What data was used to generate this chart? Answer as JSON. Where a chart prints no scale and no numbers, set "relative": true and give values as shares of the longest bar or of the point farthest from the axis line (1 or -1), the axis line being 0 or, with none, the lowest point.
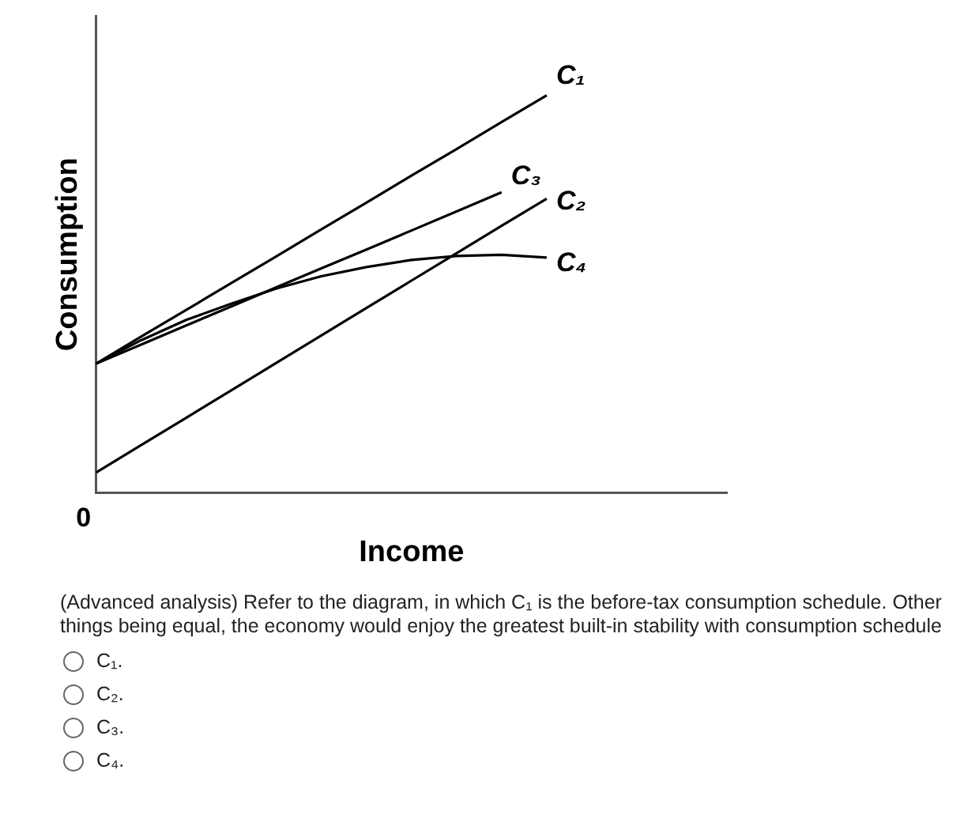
{
  "chart_data": {
    "type": "line",
    "relative": true,
    "xlabel": "Income",
    "ylabel": "Consumption",
    "legend": false,
    "grid": false,
    "marker": "none",
    "categories": [
      null,
      null,
      null,
      null,
      null,
      null,
      null,
      null,
      null,
      null,
      null,
      null,
      null,
      null,
      null
    ],
    "series": [
      {
        "name": "C₁",
        "color": "#000000",
        "values": [
          0.325,
          0.393,
          0.46,
          0.528,
          0.595,
          0.663,
          0.73,
          0.798,
          0.865,
          0.933,
          1.0,
          null,
          null,
          null,
          null
        ]
      },
      {
        "name": "C₃",
        "color": "#000000",
        "values": [
          0.325,
          0.373,
          0.421,
          0.469,
          0.517,
          0.565,
          0.612,
          0.66,
          0.708,
          0.756,
          null,
          null,
          null,
          null,
          null
        ]
      },
      {
        "name": "C₂",
        "color": "#000000",
        "values": [
          0.051,
          0.12,
          0.189,
          0.258,
          0.327,
          0.396,
          0.465,
          0.534,
          0.603,
          0.672,
          0.74,
          null,
          null,
          null,
          null
        ]
      },
      {
        "name": "C₄",
        "color": "#000000",
        "values": [
          0.325,
          0.384,
          0.435,
          0.476,
          0.514,
          0.545,
          0.568,
          0.586,
          0.596,
          0.599,
          0.592,
          null,
          null,
          null,
          null
        ]
      }
    ],
    "annotations": [
      "0",
      "(Advanced analysis) Refer to the diagram, in which C₁ is the before-tax consumption schedule. Other things being equal, the economy would enjoy the greatest built-in stability with consumption schedule",
      "C₁.",
      "C₂.",
      "C₃.",
      "C₄."
    ]
  }
}
